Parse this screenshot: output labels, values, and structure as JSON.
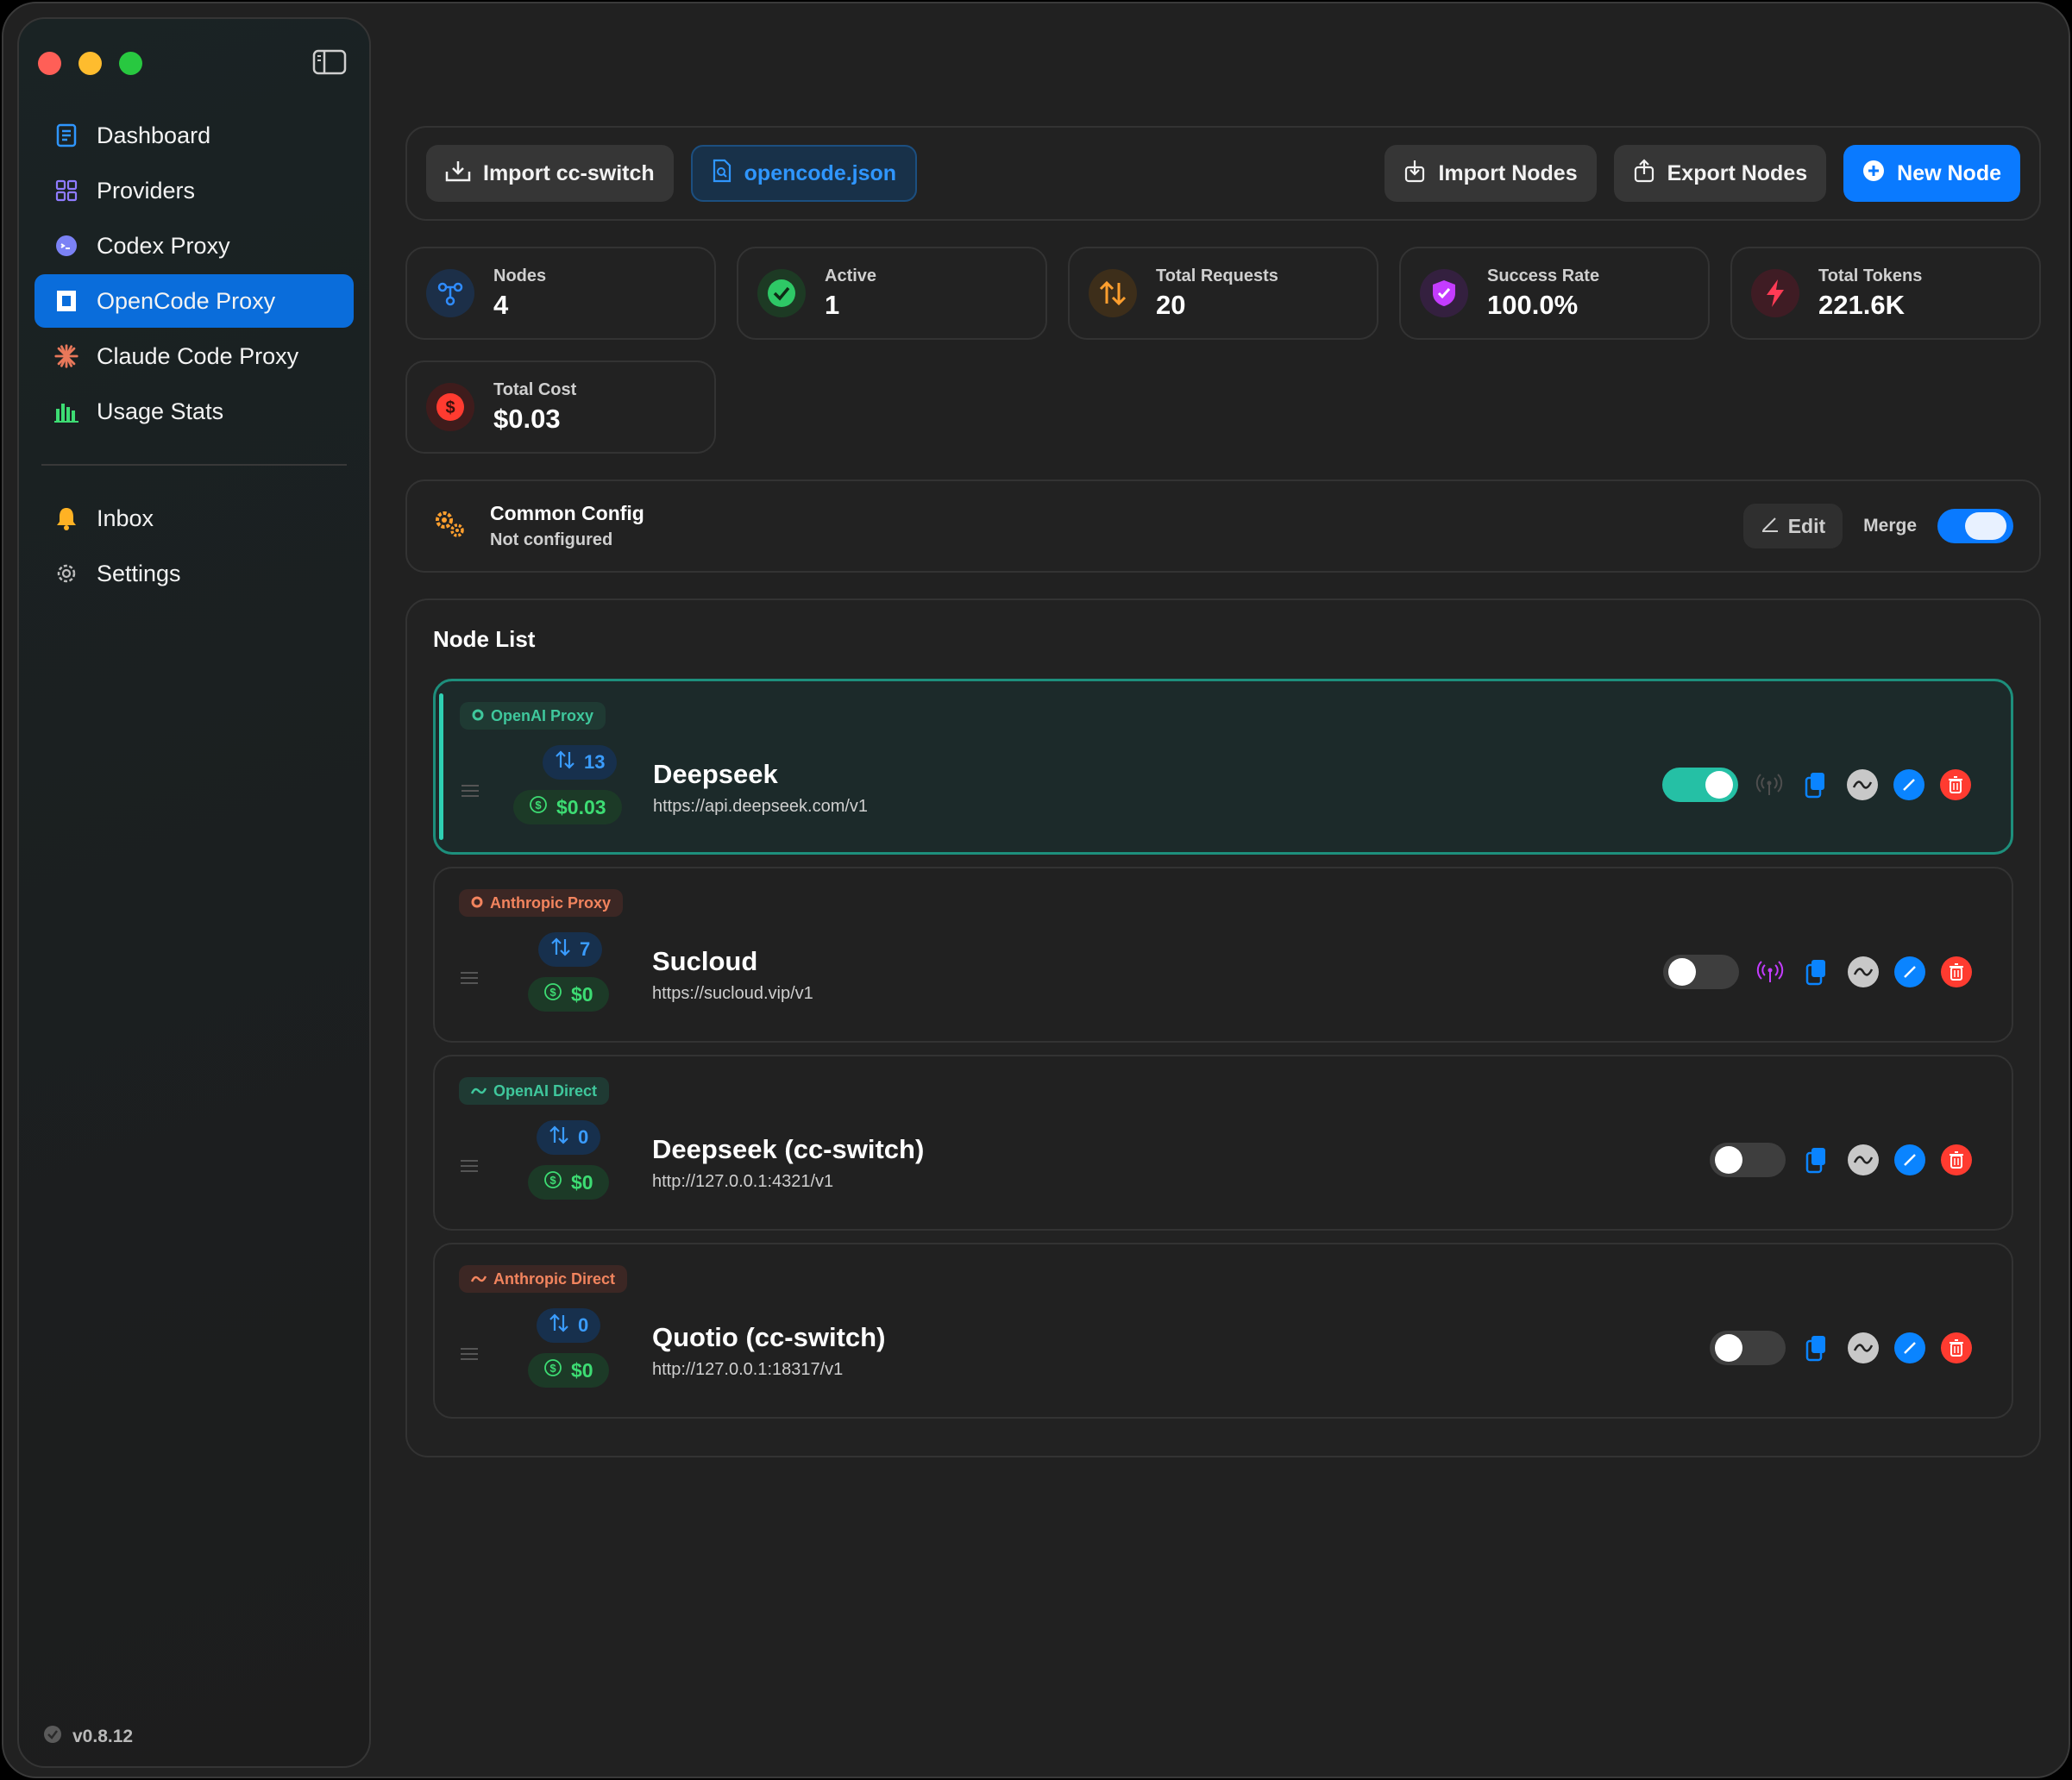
{
  "sidebar": {
    "items": [
      {
        "label": "Dashboard",
        "icon": "dashboard-icon"
      },
      {
        "label": "Providers",
        "icon": "grid-icon"
      },
      {
        "label": "Codex Proxy",
        "icon": "codex-icon"
      },
      {
        "label": "OpenCode Proxy",
        "icon": "opencode-icon",
        "active": true
      },
      {
        "label": "Claude Code Proxy",
        "icon": "claude-icon"
      },
      {
        "label": "Usage Stats",
        "icon": "bar-chart-icon"
      }
    ],
    "bottom_items": [
      {
        "label": "Inbox",
        "icon": "bell-icon"
      },
      {
        "label": "Settings",
        "icon": "gear-icon"
      }
    ],
    "version": "v0.8.12"
  },
  "toolbar": {
    "import_ccswitch": "Import cc-switch",
    "opencode_json": "opencode.json",
    "import_nodes": "Import Nodes",
    "export_nodes": "Export Nodes",
    "new_node": "New Node"
  },
  "stats": [
    {
      "label": "Nodes",
      "value": "4",
      "color": "#2f8cff"
    },
    {
      "label": "Active",
      "value": "1",
      "color": "#2ec866"
    },
    {
      "label": "Total Requests",
      "value": "20",
      "color": "#ff9f2e"
    },
    {
      "label": "Success Rate",
      "value": "100.0%",
      "color": "#c43cff"
    },
    {
      "label": "Total Tokens",
      "value": "221.6K",
      "color": "#ff3b55"
    },
    {
      "label": "Total Cost",
      "value": "$0.03",
      "color": "#ff3b30"
    }
  ],
  "common_config": {
    "title": "Common Config",
    "status": "Not configured",
    "edit_label": "Edit",
    "merge_label": "Merge",
    "merge_on": true
  },
  "node_list": {
    "title": "Node List",
    "nodes": [
      {
        "tag": "OpenAI Proxy",
        "requests": "13",
        "cost": "$0.03",
        "name": "Deepseek",
        "url": "https://api.deepseek.com/v1",
        "enabled": true
      },
      {
        "tag": "Anthropic Proxy",
        "requests": "7",
        "cost": "$0",
        "name": "Sucloud",
        "url": "https://sucloud.vip/v1",
        "enabled": false
      },
      {
        "tag": "OpenAI Direct",
        "requests": "0",
        "cost": "$0",
        "name": "Deepseek (cc-switch)",
        "url": "http://127.0.0.1:4321/v1",
        "enabled": false
      },
      {
        "tag": "Anthropic Direct",
        "requests": "0",
        "cost": "$0",
        "name": "Quotio (cc-switch)",
        "url": "http://127.0.0.1:18317/v1",
        "enabled": false
      }
    ]
  }
}
